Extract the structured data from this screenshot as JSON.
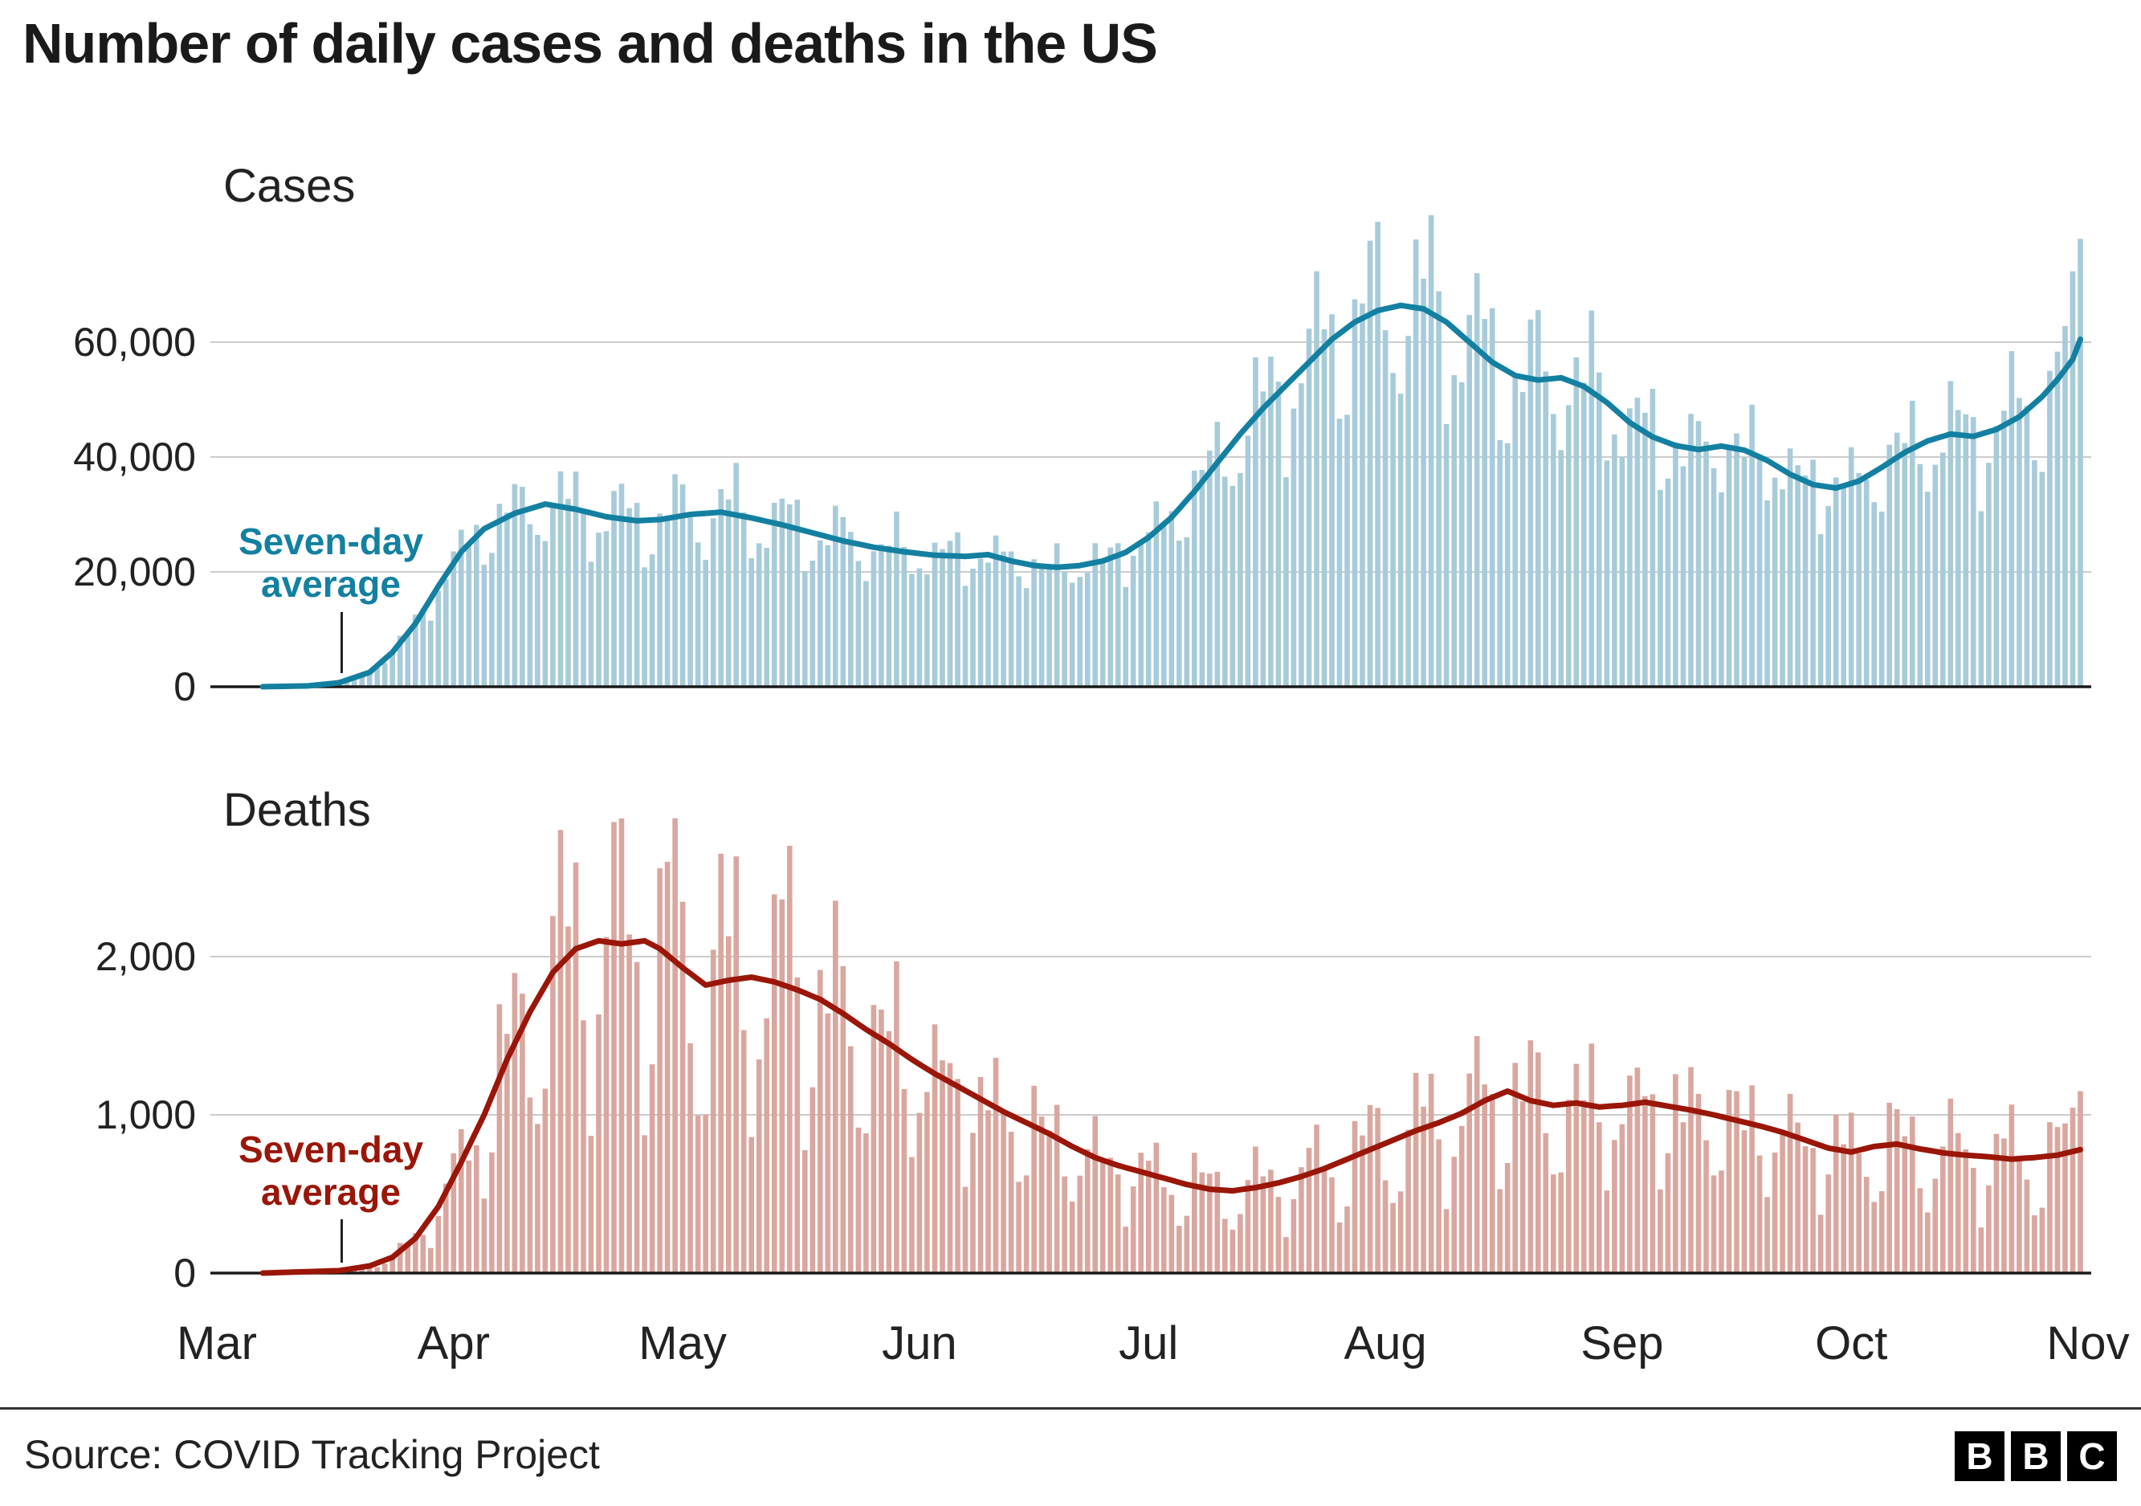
{
  "title": "Number of daily cases and deaths in the US",
  "source": "Source: COVID Tracking Project",
  "logo": [
    "B",
    "B",
    "C"
  ],
  "colors": {
    "cases_bar": "#a7cbda",
    "cases_line": "#1380a1",
    "deaths_bar": "#d9a79f",
    "deaths_line": "#9a1608",
    "grid": "#cccccc",
    "axis": "#1a1a1a",
    "text": "#222222"
  },
  "x_axis": {
    "unit": "days since Mar 1, 2020",
    "months": [
      "Mar",
      "Apr",
      "May",
      "Jun",
      "Jul",
      "Aug",
      "Sep",
      "Oct",
      "Nov"
    ],
    "month_day_offsets": [
      0,
      31,
      61,
      92,
      122,
      153,
      184,
      214,
      245
    ],
    "total_days": 245,
    "first_weekday": "Sunday"
  },
  "chart_data": [
    {
      "type": "bar+line",
      "name": "cases",
      "title": "Cases",
      "annotation_lines": [
        "Seven-day",
        "average"
      ],
      "xlabel": "",
      "ylabel": "",
      "ylim": [
        0,
        80000
      ],
      "yticks": [
        0,
        20000,
        40000,
        60000
      ],
      "ytick_labels": [
        "0",
        "20,000",
        "40,000",
        "60,000"
      ],
      "grid": "horizontal",
      "avg_anchors": [
        [
          6,
          0
        ],
        [
          12,
          150
        ],
        [
          16,
          700
        ],
        [
          20,
          2500
        ],
        [
          23,
          6000
        ],
        [
          26,
          11000
        ],
        [
          29,
          17500
        ],
        [
          32,
          23500
        ],
        [
          35,
          27500
        ],
        [
          39,
          30200
        ],
        [
          43,
          31800
        ],
        [
          47,
          30900
        ],
        [
          51,
          29600
        ],
        [
          55,
          28900
        ],
        [
          58,
          29100
        ],
        [
          62,
          30000
        ],
        [
          66,
          30400
        ],
        [
          70,
          29400
        ],
        [
          74,
          28200
        ],
        [
          78,
          26800
        ],
        [
          82,
          25400
        ],
        [
          86,
          24300
        ],
        [
          90,
          23500
        ],
        [
          94,
          22900
        ],
        [
          98,
          22700
        ],
        [
          101,
          23000
        ],
        [
          104,
          21900
        ],
        [
          107,
          21100
        ],
        [
          110,
          20800
        ],
        [
          113,
          21100
        ],
        [
          116,
          21900
        ],
        [
          119,
          23400
        ],
        [
          122,
          26000
        ],
        [
          125,
          29500
        ],
        [
          128,
          34000
        ],
        [
          131,
          39000
        ],
        [
          134,
          44000
        ],
        [
          137,
          48500
        ],
        [
          140,
          52500
        ],
        [
          143,
          56500
        ],
        [
          146,
          60500
        ],
        [
          149,
          63500
        ],
        [
          152,
          65500
        ],
        [
          155,
          66400
        ],
        [
          158,
          65800
        ],
        [
          161,
          63500
        ],
        [
          164,
          60000
        ],
        [
          167,
          56500
        ],
        [
          170,
          54200
        ],
        [
          173,
          53400
        ],
        [
          176,
          53800
        ],
        [
          179,
          52300
        ],
        [
          182,
          49500
        ],
        [
          185,
          46000
        ],
        [
          188,
          43500
        ],
        [
          191,
          42000
        ],
        [
          194,
          41300
        ],
        [
          197,
          41900
        ],
        [
          200,
          41200
        ],
        [
          203,
          39400
        ],
        [
          206,
          37000
        ],
        [
          209,
          35200
        ],
        [
          212,
          34600
        ],
        [
          215,
          35800
        ],
        [
          218,
          38200
        ],
        [
          221,
          40800
        ],
        [
          224,
          42800
        ],
        [
          227,
          44000
        ],
        [
          230,
          43600
        ],
        [
          233,
          44800
        ],
        [
          236,
          47000
        ],
        [
          239,
          50500
        ],
        [
          241,
          53500
        ],
        [
          243,
          57000
        ],
        [
          244,
          60500
        ]
      ],
      "weekday_pattern": [
        0.8,
        0.84,
        0.97,
        1.07,
        1.12,
        1.15,
        1.05
      ],
      "jitter_amp": 0.09,
      "spikes": {
        "244": 78000
      }
    },
    {
      "type": "bar+line",
      "name": "deaths",
      "title": "Deaths",
      "annotation_lines": [
        "Seven-day",
        "average"
      ],
      "xlabel": "",
      "ylabel": "",
      "ylim": [
        0,
        2800
      ],
      "yticks": [
        0,
        1000,
        2000
      ],
      "ytick_labels": [
        "0",
        "1,000",
        "2,000"
      ],
      "grid": "horizontal",
      "avg_anchors": [
        [
          6,
          0
        ],
        [
          16,
          15
        ],
        [
          20,
          45
        ],
        [
          23,
          100
        ],
        [
          26,
          220
        ],
        [
          29,
          420
        ],
        [
          32,
          700
        ],
        [
          35,
          1000
        ],
        [
          38,
          1350
        ],
        [
          41,
          1650
        ],
        [
          44,
          1900
        ],
        [
          47,
          2050
        ],
        [
          50,
          2100
        ],
        [
          53,
          2080
        ],
        [
          56,
          2100
        ],
        [
          58,
          2050
        ],
        [
          61,
          1930
        ],
        [
          64,
          1820
        ],
        [
          67,
          1850
        ],
        [
          70,
          1870
        ],
        [
          73,
          1840
        ],
        [
          76,
          1790
        ],
        [
          79,
          1730
        ],
        [
          82,
          1640
        ],
        [
          85,
          1540
        ],
        [
          88,
          1450
        ],
        [
          91,
          1350
        ],
        [
          94,
          1260
        ],
        [
          97,
          1180
        ],
        [
          100,
          1100
        ],
        [
          103,
          1020
        ],
        [
          106,
          950
        ],
        [
          109,
          880
        ],
        [
          112,
          800
        ],
        [
          115,
          730
        ],
        [
          118,
          680
        ],
        [
          121,
          640
        ],
        [
          124,
          600
        ],
        [
          127,
          560
        ],
        [
          130,
          530
        ],
        [
          133,
          520
        ],
        [
          136,
          540
        ],
        [
          139,
          570
        ],
        [
          142,
          610
        ],
        [
          145,
          660
        ],
        [
          148,
          720
        ],
        [
          151,
          780
        ],
        [
          154,
          840
        ],
        [
          157,
          900
        ],
        [
          160,
          950
        ],
        [
          163,
          1010
        ],
        [
          166,
          1090
        ],
        [
          169,
          1150
        ],
        [
          172,
          1090
        ],
        [
          175,
          1060
        ],
        [
          178,
          1075
        ],
        [
          181,
          1050
        ],
        [
          184,
          1060
        ],
        [
          187,
          1080
        ],
        [
          190,
          1055
        ],
        [
          193,
          1030
        ],
        [
          196,
          1000
        ],
        [
          199,
          965
        ],
        [
          202,
          930
        ],
        [
          205,
          890
        ],
        [
          208,
          840
        ],
        [
          211,
          790
        ],
        [
          214,
          765
        ],
        [
          217,
          800
        ],
        [
          220,
          815
        ],
        [
          223,
          785
        ],
        [
          226,
          760
        ],
        [
          229,
          745
        ],
        [
          232,
          735
        ],
        [
          235,
          720
        ],
        [
          238,
          730
        ],
        [
          241,
          745
        ],
        [
          244,
          780
        ]
      ],
      "weekday_pattern": [
        0.5,
        0.7,
        1.12,
        1.2,
        1.22,
        1.16,
        0.86
      ],
      "jitter_amp": 0.15,
      "spikes": {
        "59": 2600,
        "66": 2650,
        "75": 2700,
        "244": 1150
      }
    }
  ]
}
